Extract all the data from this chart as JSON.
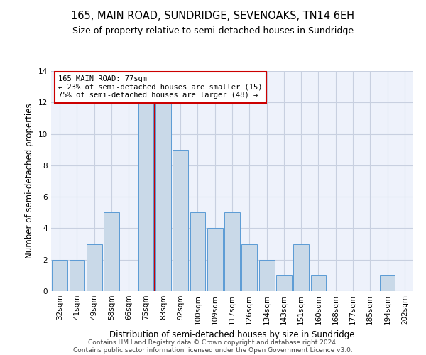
{
  "title": "165, MAIN ROAD, SUNDRIDGE, SEVENOAKS, TN14 6EH",
  "subtitle": "Size of property relative to semi-detached houses in Sundridge",
  "xlabel": "Distribution of semi-detached houses by size in Sundridge",
  "ylabel": "Number of semi-detached properties",
  "categories": [
    "32sqm",
    "41sqm",
    "49sqm",
    "58sqm",
    "66sqm",
    "75sqm",
    "83sqm",
    "92sqm",
    "100sqm",
    "109sqm",
    "117sqm",
    "126sqm",
    "134sqm",
    "143sqm",
    "151sqm",
    "160sqm",
    "168sqm",
    "177sqm",
    "185sqm",
    "194sqm",
    "202sqm"
  ],
  "values": [
    2,
    2,
    3,
    5,
    0,
    12,
    12,
    9,
    5,
    4,
    5,
    3,
    2,
    1,
    3,
    1,
    0,
    0,
    0,
    1,
    0
  ],
  "bar_color": "#c9d9e8",
  "bar_edge_color": "#5b9bd5",
  "vline_x_index": 5.5,
  "vline_color": "#cc0000",
  "annotation_line1": "165 MAIN ROAD: 77sqm",
  "annotation_line2": "← 23% of semi-detached houses are smaller (15)",
  "annotation_line3": "75% of semi-detached houses are larger (48) →",
  "annotation_box_color": "#cc0000",
  "ylim": [
    0,
    14
  ],
  "yticks": [
    0,
    2,
    4,
    6,
    8,
    10,
    12,
    14
  ],
  "grid_color": "#c8d0e0",
  "bg_color": "#eef2fb",
  "footer": "Contains HM Land Registry data © Crown copyright and database right 2024.\nContains public sector information licensed under the Open Government Licence v3.0.",
  "title_fontsize": 10.5,
  "subtitle_fontsize": 9,
  "xlabel_fontsize": 8.5,
  "ylabel_fontsize": 8.5,
  "tick_fontsize": 7.5,
  "annotation_fontsize": 7.5,
  "footer_fontsize": 6.5
}
